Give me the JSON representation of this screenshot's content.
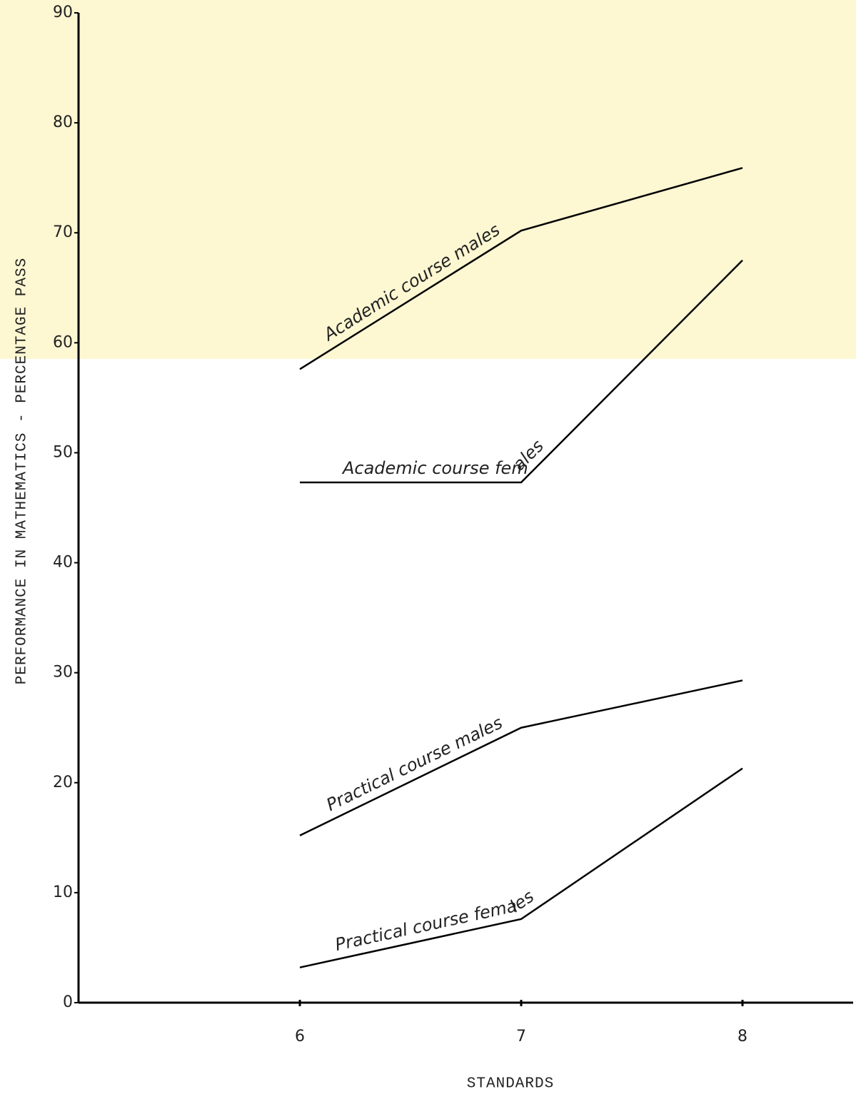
{
  "chart_data": {
    "type": "line",
    "x_label": "STANDARDS",
    "y_label": "PERFORMANCE IN MATHEMATICS - PERCENTAGE PASS",
    "x": [
      6,
      7,
      8
    ],
    "series": [
      {
        "name": "Academic course males",
        "color": "#000000",
        "values": [
          57.6,
          70.2,
          75.9
        ]
      },
      {
        "name": "Academic course females",
        "color": "#000000",
        "values": [
          47.3,
          47.3,
          67.5
        ]
      },
      {
        "name": "Practical course males",
        "color": "#000000",
        "values": [
          15.2,
          25.0,
          29.3
        ]
      },
      {
        "name": "Practical course females",
        "color": "#000000",
        "values": [
          3.2,
          7.6,
          21.3
        ]
      }
    ],
    "xlim": [
      5,
      8.5
    ],
    "xticks": [
      6,
      7,
      8
    ],
    "ylim": [
      0,
      90
    ],
    "yticks": [
      0,
      10,
      20,
      30,
      40,
      50,
      60,
      70,
      80,
      90
    ],
    "grid": false
  }
}
